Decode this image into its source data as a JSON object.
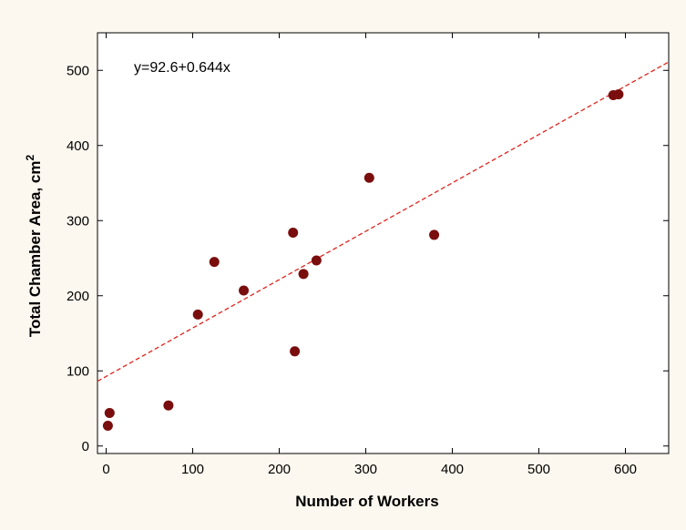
{
  "chart_data": {
    "type": "scatter",
    "xlabel": "Number of Workers",
    "ylabel": "Total Chamber  Area, cm",
    "ylabel_superscript": "2",
    "equation": "y=92.6+0.644x",
    "xlim": [
      -10,
      650
    ],
    "ylim": [
      -10,
      550
    ],
    "xticks": [
      0,
      100,
      200,
      300,
      400,
      500,
      600
    ],
    "yticks": [
      0,
      100,
      200,
      300,
      400,
      500
    ],
    "grid": false,
    "point_color": "#7a0d0d",
    "fit_line": {
      "intercept": 92.6,
      "slope": 0.644,
      "color": "#e0241c",
      "style": "dashed"
    },
    "points": [
      {
        "x": 2,
        "y": 27
      },
      {
        "x": 4,
        "y": 44
      },
      {
        "x": 72,
        "y": 54
      },
      {
        "x": 106,
        "y": 175
      },
      {
        "x": 125,
        "y": 245
      },
      {
        "x": 159,
        "y": 207
      },
      {
        "x": 216,
        "y": 284
      },
      {
        "x": 218,
        "y": 126
      },
      {
        "x": 228,
        "y": 229
      },
      {
        "x": 243,
        "y": 247
      },
      {
        "x": 304,
        "y": 357
      },
      {
        "x": 379,
        "y": 281
      },
      {
        "x": 586,
        "y": 467
      },
      {
        "x": 592,
        "y": 468
      }
    ]
  }
}
